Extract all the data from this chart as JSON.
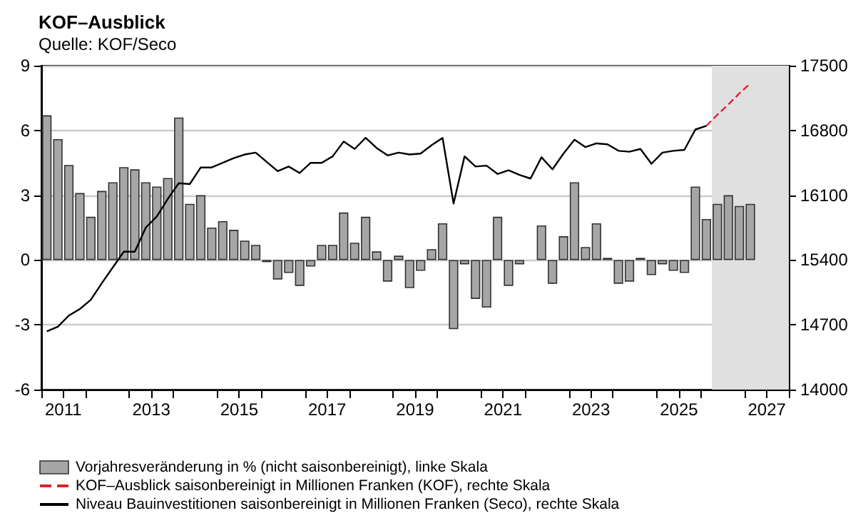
{
  "chart_data": {
    "type": "bar",
    "title": "KOF–Ausblick",
    "subtitle": "Quelle: KOF/Seco",
    "series": [
      {
        "name": "Vorjahresveränderung in % (nicht saisonbereinigt), linke Skala",
        "color": "#a6a6a6",
        "x": [
          2011.125,
          2011.375,
          2011.625,
          2011.875,
          2012.125,
          2012.375,
          2012.625,
          2012.875,
          2013.125,
          2013.375,
          2013.625,
          2013.875,
          2014.125,
          2014.375,
          2014.625,
          2014.875,
          2015.125,
          2015.375,
          2015.625,
          2015.875,
          2016.125,
          2016.375,
          2016.625,
          2016.875,
          2017.125,
          2017.375,
          2017.625,
          2017.875,
          2018.125,
          2018.375,
          2018.625,
          2018.875,
          2019.125,
          2019.375,
          2019.625,
          2019.875,
          2020.125,
          2020.375,
          2020.625,
          2020.875,
          2021.125,
          2021.375,
          2021.625,
          2021.875,
          2022.125,
          2022.375,
          2022.625,
          2022.875,
          2023.125,
          2023.375,
          2023.625,
          2023.875,
          2024.125,
          2024.375,
          2024.625,
          2024.875,
          2025.125,
          2025.375,
          2025.625,
          2025.875,
          2026.125,
          2026.375,
          2026.625,
          2026.875,
          2027.125
        ],
        "values": [
          6.7,
          5.6,
          4.4,
          3.1,
          2.0,
          3.2,
          3.6,
          4.3,
          4.2,
          3.6,
          3.4,
          3.8,
          6.6,
          2.6,
          3.0,
          1.5,
          1.8,
          1.4,
          0.9,
          0.7,
          -0.1,
          -0.9,
          -0.6,
          -1.2,
          -0.3,
          0.7,
          0.7,
          2.2,
          0.8,
          2.0,
          0.4,
          -1.0,
          0.2,
          -1.3,
          -0.5,
          0.5,
          1.7,
          -3.2,
          -0.2,
          -1.8,
          -2.2,
          2.0,
          -1.2,
          -0.2,
          null,
          1.6,
          -1.1,
          1.1,
          3.6,
          0.6,
          1.7,
          0.1,
          -1.1,
          -1.0,
          0.1,
          -0.7,
          -0.2,
          -0.5,
          -0.6,
          3.4,
          1.9,
          2.6,
          3.0,
          2.5,
          2.6
        ]
      },
      {
        "name": "KOF–Ausblick saisonbereinigt in Millionen Franken (KOF), rechte Skala",
        "type": "line",
        "axis": "y2",
        "color": "#e0202c",
        "line_style": "dashed",
        "x": [
          2026.125,
          2026.375,
          2026.625,
          2026.875,
          2027.125
        ],
        "values": [
          16850,
          16970,
          17080,
          17200,
          17310
        ]
      },
      {
        "name": "Niveau Bauinvestitionen saisonbereinigt in Millionen Franken (Seco), rechte Skala",
        "type": "line",
        "axis": "y2",
        "color": "#000000",
        "line_style": "solid",
        "x": [
          2011.125,
          2011.375,
          2011.625,
          2011.875,
          2012.125,
          2012.375,
          2012.625,
          2012.875,
          2013.125,
          2013.375,
          2013.625,
          2013.875,
          2014.125,
          2014.375,
          2014.625,
          2014.875,
          2015.125,
          2015.375,
          2015.625,
          2015.875,
          2016.125,
          2016.375,
          2016.625,
          2016.875,
          2017.125,
          2017.375,
          2017.625,
          2017.875,
          2018.125,
          2018.375,
          2018.625,
          2018.875,
          2019.125,
          2019.375,
          2019.625,
          2019.875,
          2020.125,
          2020.375,
          2020.625,
          2020.875,
          2021.125,
          2021.375,
          2021.625,
          2021.875,
          2022.125,
          2022.375,
          2022.625,
          2022.875,
          2023.125,
          2023.375,
          2023.625,
          2023.875,
          2024.125,
          2024.375,
          2024.625,
          2024.875,
          2025.125,
          2025.375,
          2025.625,
          2025.875,
          2026.125
        ],
        "values": [
          14630,
          14680,
          14800,
          14870,
          14970,
          15150,
          15320,
          15490,
          15490,
          15750,
          15870,
          16060,
          16230,
          16220,
          16400,
          16400,
          16450,
          16500,
          16540,
          16560,
          16460,
          16360,
          16410,
          16340,
          16450,
          16450,
          16520,
          16680,
          16600,
          16720,
          16610,
          16530,
          16560,
          16540,
          16550,
          16640,
          16720,
          16010,
          16520,
          16410,
          16420,
          16330,
          16370,
          16320,
          16280,
          16510,
          16380,
          16550,
          16700,
          16620,
          16660,
          16650,
          16580,
          16570,
          16600,
          16440,
          16560,
          16580,
          16590,
          16810,
          16850
        ]
      }
    ],
    "xlim": [
      2011,
      2028
    ],
    "xticks": [
      {
        "value": 2011,
        "label": null
      },
      {
        "value": 2011.5,
        "label": "2011"
      },
      {
        "value": 2012,
        "label": null
      },
      {
        "value": 2013,
        "label": null
      },
      {
        "value": 2013.5,
        "label": "2013"
      },
      {
        "value": 2014,
        "label": null
      },
      {
        "value": 2015,
        "label": null
      },
      {
        "value": 2015.5,
        "label": "2015"
      },
      {
        "value": 2016,
        "label": null
      },
      {
        "value": 2017,
        "label": null
      },
      {
        "value": 2017.5,
        "label": "2017"
      },
      {
        "value": 2018,
        "label": null
      },
      {
        "value": 2019,
        "label": null
      },
      {
        "value": 2019.5,
        "label": "2019"
      },
      {
        "value": 2020,
        "label": null
      },
      {
        "value": 2021,
        "label": null
      },
      {
        "value": 2021.5,
        "label": "2021"
      },
      {
        "value": 2022,
        "label": null
      },
      {
        "value": 2023,
        "label": null
      },
      {
        "value": 2023.5,
        "label": "2023"
      },
      {
        "value": 2024,
        "label": null
      },
      {
        "value": 2025,
        "label": null
      },
      {
        "value": 2025.5,
        "label": "2025"
      },
      {
        "value": 2026,
        "label": null
      },
      {
        "value": 2027,
        "label": null
      },
      {
        "value": 2027.5,
        "label": "2027"
      },
      {
        "value": 2028,
        "label": null
      }
    ],
    "ylim": [
      -6,
      9
    ],
    "yticks": [
      -6,
      -3,
      0,
      3,
      6,
      9
    ],
    "y2lim": [
      14000,
      17500
    ],
    "y2ticks": [
      14000,
      14700,
      15400,
      16100,
      16800,
      17500
    ],
    "bands": [
      {
        "axis": "x",
        "from": 2026.25,
        "to": 2028,
        "color": "#e0e0e0"
      }
    ],
    "grid": "y",
    "legend": "bottom",
    "marker": "none"
  }
}
